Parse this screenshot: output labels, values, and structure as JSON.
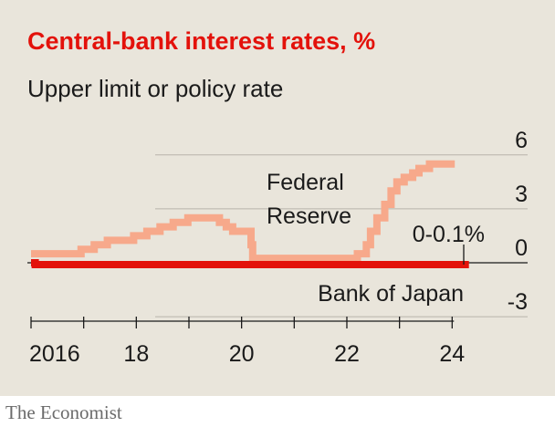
{
  "chart_data": {
    "type": "line",
    "title": "Central-bank interest rates, %",
    "subtitle": "Upper limit or policy rate",
    "xlabel": "",
    "ylabel": "",
    "xlim": [
      2015.9,
      2025.1
    ],
    "ylim": [
      -3,
      6
    ],
    "y_ticks": [
      {
        "value": 6,
        "label": "6"
      },
      {
        "value": 3,
        "label": "3"
      },
      {
        "value": 0,
        "label": "0"
      },
      {
        "value": -3,
        "label": "-3"
      }
    ],
    "x_ticks": [
      {
        "value": 2016,
        "label": "2016"
      },
      {
        "value": 2017,
        "label": ""
      },
      {
        "value": 2018,
        "label": "18"
      },
      {
        "value": 2019,
        "label": ""
      },
      {
        "value": 2020,
        "label": "20"
      },
      {
        "value": 2021,
        "label": ""
      },
      {
        "value": 2022,
        "label": "22"
      },
      {
        "value": 2023,
        "label": ""
      },
      {
        "value": 2024,
        "label": "24"
      }
    ],
    "grid": true,
    "series": [
      {
        "name": "Federal Reserve",
        "color": "#f7a98b",
        "step": true,
        "points": [
          [
            2016.0,
            0.5
          ],
          [
            2016.95,
            0.75
          ],
          [
            2017.2,
            1.0
          ],
          [
            2017.45,
            1.25
          ],
          [
            2017.95,
            1.5
          ],
          [
            2018.2,
            1.75
          ],
          [
            2018.45,
            2.0
          ],
          [
            2018.7,
            2.25
          ],
          [
            2018.98,
            2.5
          ],
          [
            2019.58,
            2.25
          ],
          [
            2019.71,
            2.0
          ],
          [
            2019.83,
            1.75
          ],
          [
            2020.18,
            1.0
          ],
          [
            2020.21,
            0.25
          ],
          [
            2022.2,
            0.5
          ],
          [
            2022.37,
            1.0
          ],
          [
            2022.45,
            1.75
          ],
          [
            2022.57,
            2.5
          ],
          [
            2022.72,
            3.25
          ],
          [
            2022.84,
            4.0
          ],
          [
            2022.95,
            4.5
          ],
          [
            2023.09,
            4.75
          ],
          [
            2023.25,
            5.0
          ],
          [
            2023.37,
            5.25
          ],
          [
            2023.57,
            5.5
          ],
          [
            2024.05,
            5.5
          ]
        ]
      },
      {
        "name": "Bank of Japan",
        "color": "#e3120b",
        "step": true,
        "points": [
          [
            2016.0,
            0.0
          ],
          [
            2016.08,
            -0.1
          ],
          [
            2024.22,
            -0.1
          ],
          [
            2024.25,
            0.1
          ]
        ]
      }
    ],
    "annotations": [
      {
        "text": "Federal",
        "anchor": "Federal Reserve"
      },
      {
        "text": "Reserve",
        "anchor": "Federal Reserve"
      },
      {
        "text": "0-0.1%",
        "anchor": "Bank of Japan end"
      },
      {
        "text": "Bank of Japan",
        "anchor": "Bank of Japan"
      }
    ]
  },
  "source": "The Economist"
}
